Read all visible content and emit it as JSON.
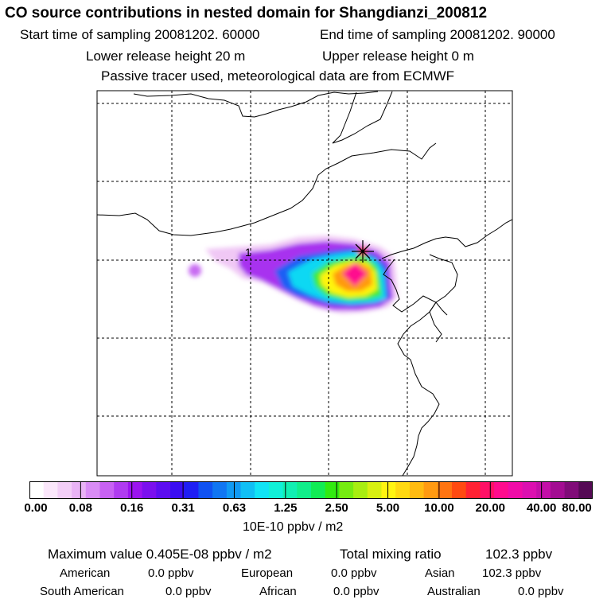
{
  "title": "CO  source contributions in nested domain for Shangdianzi_200812",
  "header": {
    "start_label": "Start time of sampling 20081202. 60000",
    "end_label": "End time of sampling 20081202. 90000",
    "lower_label": "Lower release height   20 m",
    "upper_label": "Upper release height    0 m",
    "tracer_label": "Passive tracer used, meteorological data are from ECMWF"
  },
  "map": {
    "station_number": "1",
    "colors": {
      "frame": "#000000",
      "grid": "#000000",
      "coast": "#000000",
      "station_marker": "#000000"
    }
  },
  "colorbar": {
    "tick_labels": [
      "0.00",
      "0.08",
      "0.16",
      "0.31",
      "0.63",
      "1.25",
      "2.50",
      "5.00",
      "10.00",
      "20.00",
      "40.00",
      "80.00"
    ],
    "colors": [
      "#ffffff",
      "#fbe7fb",
      "#f3cef7",
      "#e9b3f5",
      "#d98cf5",
      "#c862f3",
      "#b03cf0",
      "#9b14ef",
      "#7b10ee",
      "#5d0ef0",
      "#3b0ef2",
      "#1f1ff4",
      "#1052f2",
      "#1176f2",
      "#119af3",
      "#11bff4",
      "#11e4f5",
      "#11f0d8",
      "#11efb2",
      "#11ee8a",
      "#11ec55",
      "#31ea11",
      "#76ec11",
      "#a8ee11",
      "#d8f011",
      "#fff411",
      "#ffd911",
      "#ffbb11",
      "#ff9a11",
      "#ff7411",
      "#ff4a11",
      "#ff2233",
      "#ff1066",
      "#ff0c8e",
      "#f00ca8",
      "#dc10b0",
      "#c40fa8",
      "#a30d92",
      "#800c78",
      "#550a55"
    ],
    "unit_label": "10E-10 ppbv / m2"
  },
  "summary": {
    "maximum_label": "Maximum value  0.405E-08 ppbv / m2",
    "total_label": "Total mixing ratio",
    "total_value": "102.3 ppbv",
    "regions": [
      {
        "name": "American",
        "value": "0.0 ppbv"
      },
      {
        "name": "European",
        "value": "0.0 ppbv"
      },
      {
        "name": "Asian",
        "value": "102.3 ppbv"
      },
      {
        "name": "South American",
        "value": "0.0 ppbv"
      },
      {
        "name": "African",
        "value": "0.0 ppbv"
      },
      {
        "name": "Australian",
        "value": "0.0 ppbv"
      }
    ]
  }
}
